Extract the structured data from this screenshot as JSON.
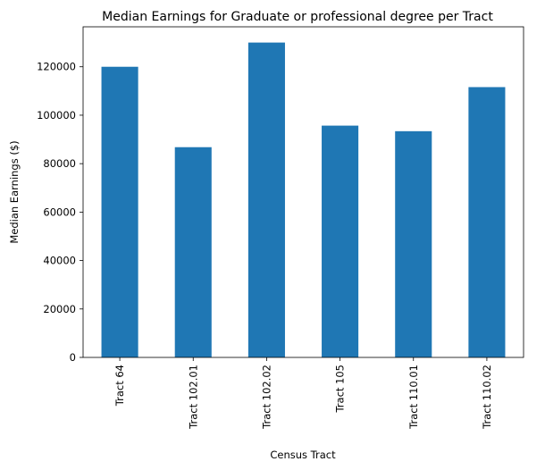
{
  "chart_data": {
    "type": "bar",
    "title": "Median Earnings for Graduate or professional degree per Tract",
    "xlabel": "Census Tract",
    "ylabel": "Median Earnings ($)",
    "categories": [
      "Tract 64",
      "Tract 102.01",
      "Tract 102.02",
      "Tract 105",
      "Tract 110.01",
      "Tract 110.02"
    ],
    "values": [
      120000,
      86800,
      130000,
      95700,
      93400,
      111600
    ],
    "ylim": [
      0,
      136500
    ],
    "yticks": [
      0,
      20000,
      40000,
      60000,
      80000,
      100000,
      120000
    ],
    "ytick_labels": [
      "0",
      "20000",
      "40000",
      "60000",
      "80000",
      "100000",
      "120000"
    ],
    "bar_color": "#1f77b4",
    "grid": false,
    "legend": false
  }
}
